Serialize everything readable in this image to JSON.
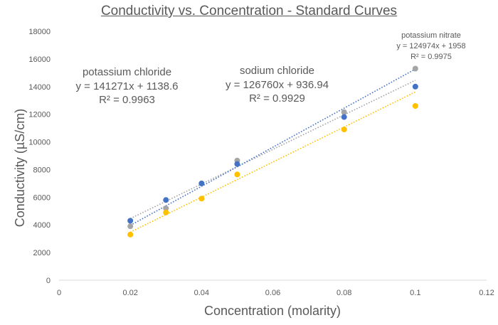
{
  "chart_data": {
    "type": "scatter",
    "title": "Conductivity vs. Concentration - Standard Curves",
    "xlabel": "Concentration (molarity)",
    "ylabel": "Conductivity (µS/cm)",
    "xlim": [
      0,
      0.12
    ],
    "ylim": [
      0,
      18000
    ],
    "x_ticks": [
      0,
      0.02,
      0.04,
      0.06,
      0.08,
      0.1,
      0.12
    ],
    "x_tick_labels": [
      "0",
      "0.02",
      "0.04",
      "0.06",
      "0.08",
      "0.1",
      "0.12"
    ],
    "y_ticks": [
      0,
      2000,
      4000,
      6000,
      8000,
      10000,
      12000,
      14000,
      16000,
      18000
    ],
    "y_tick_labels": [
      "0",
      "2000",
      "4000",
      "6000",
      "8000",
      "10000",
      "12000",
      "14000",
      "16000",
      "18000"
    ],
    "grid": false,
    "series": [
      {
        "name": "potassium nitrate",
        "color": "#a5a5a5",
        "points": [
          [
            0.02,
            3900
          ],
          [
            0.03,
            5200
          ],
          [
            0.05,
            8650
          ],
          [
            0.08,
            12150
          ],
          [
            0.1,
            15300
          ]
        ],
        "trendline": {
          "slope": 124974,
          "intercept": 1958,
          "x_range": [
            0.02,
            0.1
          ]
        },
        "equation": "y = 124974x + 1958",
        "r2": "R² = 0.9975"
      },
      {
        "name": "potassium chloride",
        "color": "#4472c4",
        "points": [
          [
            0.02,
            4300
          ],
          [
            0.03,
            5800
          ],
          [
            0.04,
            7000
          ],
          [
            0.05,
            8400
          ],
          [
            0.08,
            11800
          ],
          [
            0.1,
            14000
          ]
        ],
        "trendline": {
          "slope": 141271,
          "intercept": 1138.6,
          "x_range": [
            0.02,
            0.1
          ]
        },
        "equation": "y = 141271x + 1138.6",
        "r2": "R² = 0.9963"
      },
      {
        "name": "sodium chloride",
        "color": "#ffc000",
        "points": [
          [
            0.02,
            3300
          ],
          [
            0.03,
            4900
          ],
          [
            0.04,
            5900
          ],
          [
            0.05,
            7650
          ],
          [
            0.08,
            10900
          ],
          [
            0.1,
            12600
          ]
        ],
        "trendline": {
          "slope": 126760,
          "intercept": 936.94,
          "x_range": [
            0.02,
            0.1
          ]
        },
        "equation": "y = 126760x + 936.94",
        "r2": "R² = 0.9929"
      }
    ]
  }
}
